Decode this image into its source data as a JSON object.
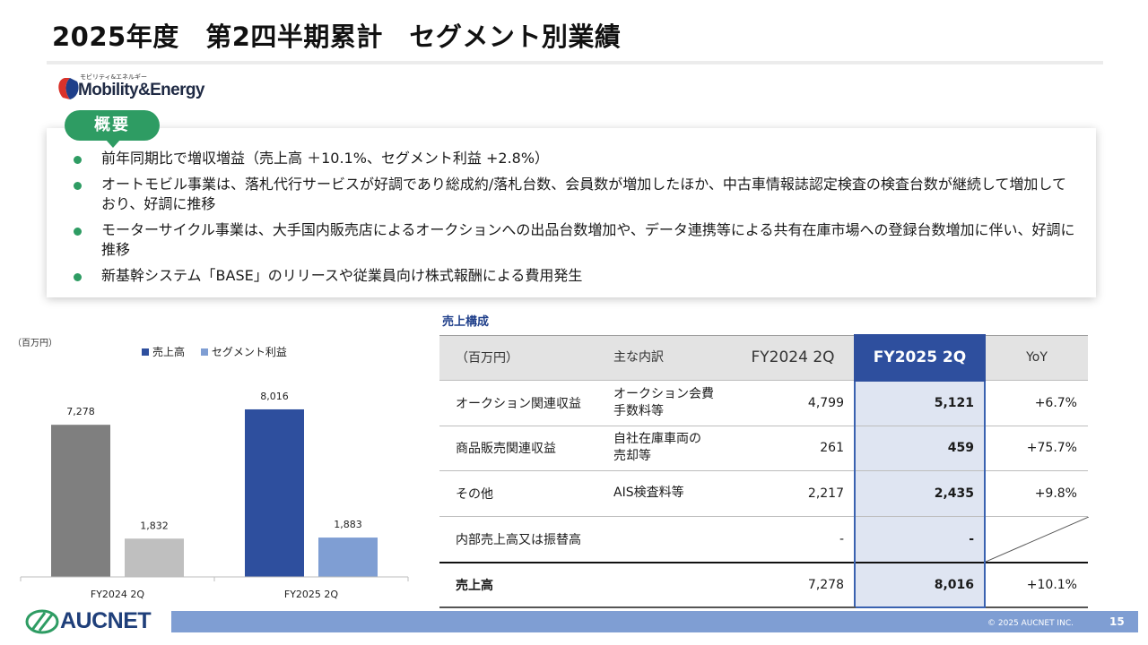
{
  "title": "2025年度　第2四半期累計　セグメント別業績",
  "brand": {
    "small": "モビリティ&エネルギー",
    "name": "Mobility&Energy",
    "colors": {
      "red": "#d9322a",
      "navy": "#1f3f8a"
    }
  },
  "summary": {
    "label": "概要",
    "bullets": [
      "前年同期比で増収増益（売上高 ＋10.1%、セグメント利益 +2.8%）",
      "オートモビル事業は、落札代行サービスが好調であり総成約/落札台数、会員数が増加したほか、中古車情報誌認定検査の検査台数が継続して増加しており、好調に推移",
      "モーターサイクル事業は、大手国内販売店によるオークションへの出品台数増加や、データ連携等による共有在庫市場への登録台数増加に伴い、好調に推移",
      "新基幹システム「BASE」のリリースや従業員向け株式報酬による費用発生"
    ]
  },
  "chart_data": {
    "type": "bar",
    "unit_label": "（百万円）",
    "categories": [
      "FY2024 2Q",
      "FY2025 2Q"
    ],
    "series": [
      {
        "name": "売上高",
        "values": [
          7278,
          8016
        ],
        "colors": [
          "#7f7f7f",
          "#2e4f9e"
        ]
      },
      {
        "name": "セグメント利益",
        "values": [
          1832,
          1883
        ],
        "colors": [
          "#bfbfbf",
          "#7f9ed3"
        ]
      }
    ],
    "data_labels": [
      [
        "7,278",
        "8,016"
      ],
      [
        "1,832",
        "1,883"
      ]
    ],
    "legend_colors": [
      "#2e4f9e",
      "#7f9ed3"
    ],
    "legend_position": "top",
    "ylim": [
      0,
      9000
    ],
    "grid": false
  },
  "sales": {
    "title": "売上構成",
    "headers": {
      "item": "（百万円）",
      "desc": "主な内訳",
      "prev": "FY2024 2Q",
      "cur": "FY2025 2Q",
      "yoy": "YoY"
    },
    "rows": [
      {
        "item": "オークション関連収益",
        "desc": "オークション会費\n手数料等",
        "prev": "4,799",
        "cur": "5,121",
        "yoy": "+6.7%"
      },
      {
        "item": "商品販売関連収益",
        "desc": "自社在庫車両の\n売却等",
        "prev": "261",
        "cur": "459",
        "yoy": "+75.7%"
      },
      {
        "item": "その他",
        "desc": "AIS検査料等",
        "prev": "2,217",
        "cur": "2,435",
        "yoy": "+9.8%"
      },
      {
        "item": "内部売上高又は振替高",
        "desc": "",
        "prev": "-",
        "cur": "-",
        "yoy": ""
      }
    ],
    "total": {
      "item": "売上高",
      "desc": "",
      "prev": "7,278",
      "cur": "8,016",
      "yoy": "+10.1%"
    }
  },
  "footer": {
    "logo": "AUCNET",
    "copyright": "© 2025 AUCNET INC.",
    "page": "15"
  }
}
